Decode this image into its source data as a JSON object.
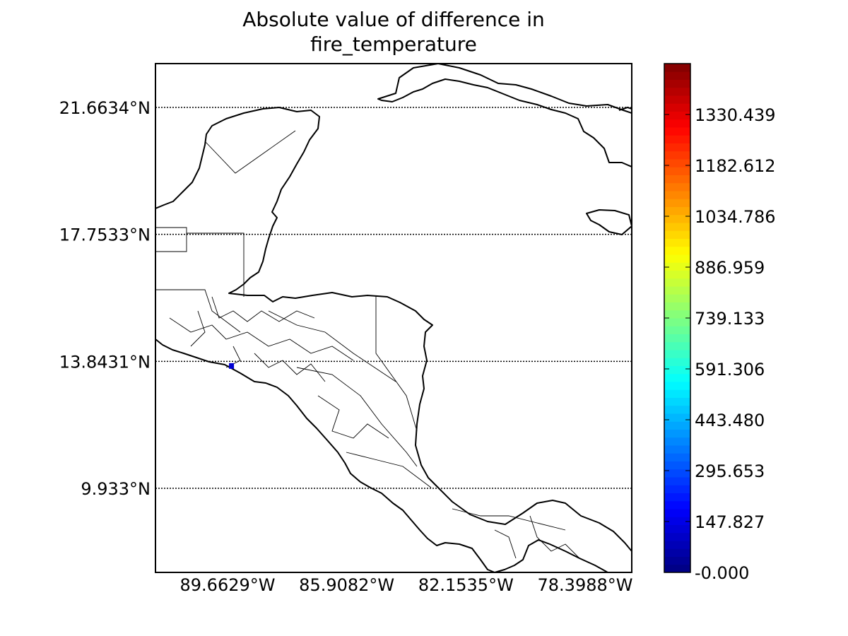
{
  "chart_data": {
    "type": "heatmap",
    "title_lines": [
      "Absolute value of difference in",
      "fire_temperature"
    ],
    "map": {
      "y_ticks": [
        {
          "label": "21.6634°N",
          "value": 21.6634
        },
        {
          "label": "17.7533°N",
          "value": 17.7533
        },
        {
          "label": "13.8431°N",
          "value": 13.8431
        },
        {
          "label": "9.933°N",
          "value": 9.933
        }
      ],
      "x_ticks": [
        {
          "label": "89.6629°W",
          "value": -89.6629
        },
        {
          "label": "85.9082°W",
          "value": -85.9082
        },
        {
          "label": "82.1535°W",
          "value": -82.1535
        },
        {
          "label": "78.3988°W",
          "value": -78.3988
        }
      ],
      "grid": "dotted latitude lines",
      "data_points": [
        {
          "lon": -89.55,
          "lat": 13.7,
          "value": 120
        }
      ]
    },
    "colorbar": {
      "colormap": "jet",
      "range": [
        0,
        1478.27
      ],
      "tick_labels": [
        {
          "label": "-0.000",
          "value": 0
        },
        {
          "label": "147.827",
          "value": 147.827
        },
        {
          "label": "295.653",
          "value": 295.653
        },
        {
          "label": "443.480",
          "value": 443.48
        },
        {
          "label": "591.306",
          "value": 591.306
        },
        {
          "label": "739.133",
          "value": 739.133
        },
        {
          "label": "886.959",
          "value": 886.959
        },
        {
          "label": "1034.786",
          "value": 1034.786
        },
        {
          "label": "1182.612",
          "value": 1182.612
        },
        {
          "label": "1330.439",
          "value": 1330.439
        }
      ]
    }
  }
}
